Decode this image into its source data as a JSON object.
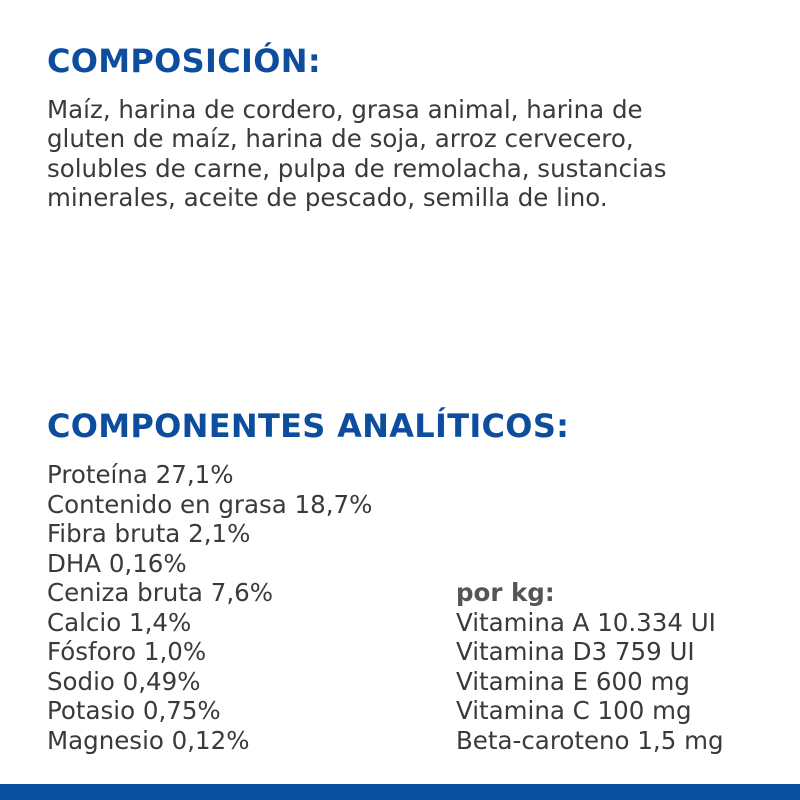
{
  "composicion": {
    "title": "COMPOSICIÓN:",
    "lines": [
      "Maíz, harina de cordero, grasa animal, harina de",
      "gluten de maíz, harina de soja, arroz cervecero,",
      "solubles de carne, pulpa de remolacha, sustancias",
      "minerales, aceite de pescado, semilla de lino."
    ]
  },
  "componentes": {
    "title": "COMPONENTES ANALÍTICOS:",
    "left": [
      "Proteína 27,1%",
      "Contenido en grasa 18,7%",
      "Fibra bruta 2,1%",
      "DHA 0,16%",
      "Ceniza bruta 7,6%",
      "Calcio 1,4%",
      "Fósforo 1,0%",
      "Sodio 0,49%",
      "Potasio 0,75%",
      "Magnesio 0,12%"
    ],
    "right_header": "por kg:",
    "right": [
      "Vitamina A 10.334 UI",
      "Vitamina D3 759 UI",
      "Vitamina E 600 mg",
      "Vitamina C 100 mg",
      "Beta-caroteno 1,5 mg"
    ]
  },
  "colors": {
    "heading": "#0d4d9e",
    "bar": "#0a4fa0",
    "text": "#3a3a3a"
  }
}
